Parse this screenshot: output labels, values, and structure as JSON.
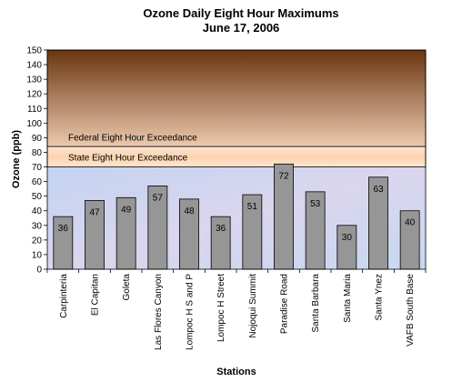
{
  "chart_data": {
    "type": "bar",
    "title": "Ozone Daily Eight Hour Maximums",
    "subtitle": "June 17, 2006",
    "xlabel": "Stations",
    "ylabel": "Ozone (ppb)",
    "ylim": [
      0,
      150
    ],
    "yticks": [
      0,
      10,
      20,
      30,
      40,
      50,
      60,
      70,
      80,
      90,
      100,
      110,
      120,
      130,
      140,
      150
    ],
    "categories": [
      "Carpinteria",
      "El Capitan",
      "Goleta",
      "Las Flores Canyon",
      "Lompoc H S and P",
      "Lompoc H Street",
      "Nojoqui Summit",
      "Paradise Road",
      "Santa Barbara",
      "Santa Maria",
      "Santa Ynez",
      "VAFB South Base"
    ],
    "values": [
      36,
      47,
      49,
      57,
      48,
      36,
      51,
      72,
      53,
      30,
      63,
      40
    ],
    "bands": [
      {
        "label": "State Eight Hour Exceedance",
        "from": 70,
        "to": 84
      },
      {
        "label": "Federal Eight Hour Exceedance",
        "from": 84,
        "to": 150
      }
    ],
    "grid": false,
    "colors": {
      "bar": "#969696",
      "federal_top": "#6a3510",
      "federal_bottom": "#ecc9ae",
      "state": "#fde0c6",
      "background": "#c9d6f0"
    }
  }
}
